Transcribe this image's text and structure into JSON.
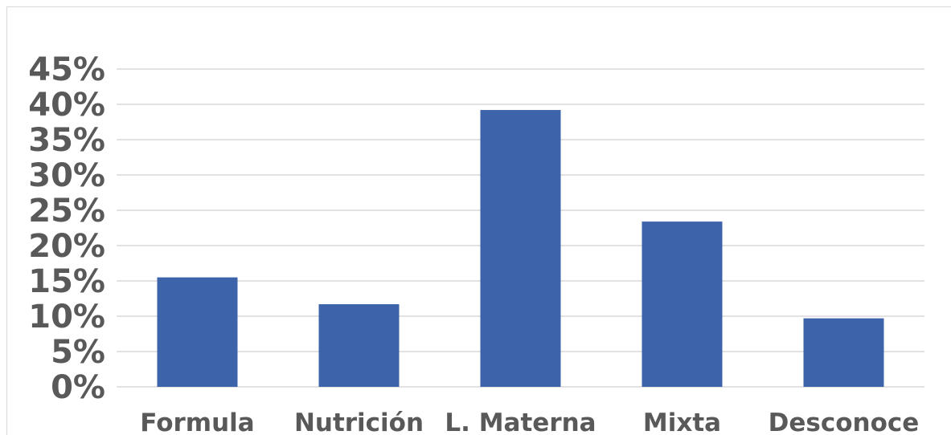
{
  "chart_data": {
    "type": "bar",
    "categories": [
      "Formula",
      "Nutrición",
      "L. Materna",
      "Mixta",
      "Desconoce"
    ],
    "values": [
      15.5,
      11.7,
      39.2,
      23.4,
      9.7
    ],
    "ylim": [
      0,
      45
    ],
    "y_ticks": [
      "0%",
      "5%",
      "10%",
      "15%",
      "20%",
      "25%",
      "30%",
      "35%",
      "40%",
      "45%"
    ],
    "grid": true,
    "legend": "none",
    "bar_color": "#3d64ab",
    "grid_color": "#d9d9d9",
    "text_color": "#595959"
  }
}
